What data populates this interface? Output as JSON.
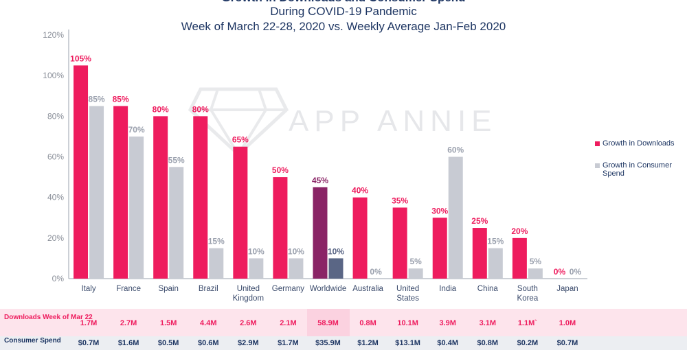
{
  "title_partial": "Growth in Downloads and Consumer Spend",
  "subtitle_line1": "During COVID-19 Pandemic",
  "subtitle_line2": "Week of March 22-28, 2020 vs. Weekly Average Jan-Feb 2020",
  "watermark": "APP ANNIE",
  "colors": {
    "downloads": "#ee1c5e",
    "spend": "#c8cbd3",
    "worldwide_downloads": "#8a2466",
    "worldwide_spend": "#5a6685",
    "label_downloads": "#ee1c5e",
    "label_spend": "#9aa0ad",
    "axis_text": "#8a8f99"
  },
  "legend": {
    "downloads": "Growth in Downloads",
    "spend": "Growth in Consumer Spend"
  },
  "table": {
    "downloads_label": "Downloads Week of Mar 22",
    "spend_label": "Consumer Spend",
    "downloads": [
      "1.7M",
      "2.7M",
      "1.5M",
      "4.4M",
      "2.6M",
      "2.1M",
      "58.9M",
      "0.8M",
      "10.1M",
      "3.9M",
      "3.1M",
      "1.1M`",
      "1.0M"
    ],
    "spend": [
      "$0.7M",
      "$1.6M",
      "$0.5M",
      "$0.6M",
      "$2.9M",
      "$1.7M",
      "$35.9M",
      "$1.2M",
      "$13.1M",
      "$0.4M",
      "$0.8M",
      "$0.2M",
      "$0.7M"
    ]
  },
  "chart_data": {
    "type": "bar",
    "categories": [
      "Italy",
      "France",
      "Spain",
      "Brazil",
      "United Kingdom",
      "Germany",
      "Worldwide",
      "Australia",
      "United States",
      "India",
      "China",
      "South Korea",
      "Japan"
    ],
    "series": [
      {
        "name": "Growth in Downloads",
        "values": [
          105,
          85,
          80,
          80,
          65,
          50,
          45,
          40,
          35,
          30,
          25,
          20,
          0
        ]
      },
      {
        "name": "Growth in Consumer Spend",
        "values": [
          85,
          70,
          55,
          15,
          10,
          10,
          10,
          0,
          5,
          60,
          15,
          5,
          0
        ]
      }
    ],
    "yticks": [
      "0%",
      "20%",
      "40%",
      "60%",
      "80%",
      "100%",
      "120%"
    ],
    "ylim": [
      0,
      120
    ],
    "highlight_category": "Worldwide",
    "grid": false,
    "legend_position": "right"
  }
}
